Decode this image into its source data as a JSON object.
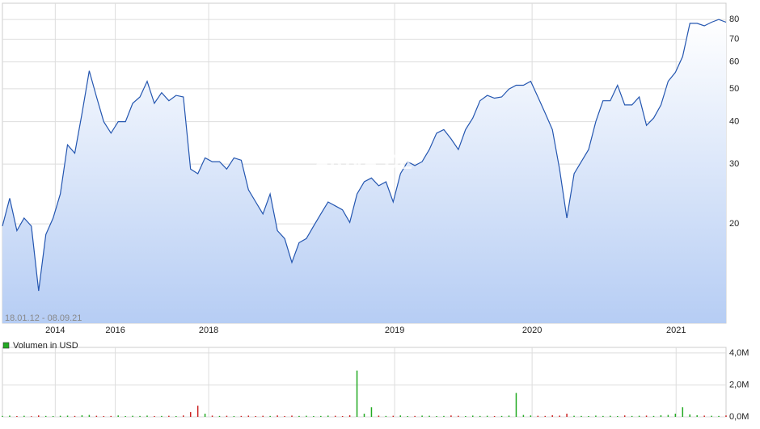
{
  "chart_data": [
    {
      "type": "line",
      "subtitle": "18.01.12 - 08.09.21",
      "watermark": "ARIVA.DE",
      "color": "#2456b0",
      "log_scale": true,
      "grid": true,
      "x": [
        0,
        1,
        2,
        3,
        4,
        5,
        6,
        7,
        8,
        9,
        10,
        11,
        12,
        13,
        14,
        15,
        16,
        17,
        18,
        19,
        20,
        21,
        22,
        23,
        24,
        25,
        26,
        27,
        28,
        29,
        30,
        31,
        32,
        33,
        34,
        35,
        36,
        37,
        38,
        39,
        40,
        41,
        42,
        43,
        44,
        45,
        46,
        47,
        48,
        49,
        50,
        51,
        52,
        53,
        54,
        55,
        56,
        57,
        58,
        59,
        60,
        61,
        62,
        63,
        64,
        65,
        66,
        67,
        68,
        69,
        70,
        71,
        72,
        73,
        74,
        75,
        76,
        77,
        78,
        79,
        80,
        81,
        82,
        83,
        84,
        85,
        86,
        87,
        88,
        89,
        90,
        91,
        92,
        93,
        94,
        95,
        96,
        97,
        98,
        99,
        100
      ],
      "values": [
        19.7,
        23.8,
        19.1,
        20.8,
        19.7,
        12.7,
        18.6,
        20.8,
        24.5,
        34.2,
        32.3,
        42.4,
        56.5,
        47.3,
        40.0,
        37.0,
        40.0,
        40.0,
        45.3,
        47.3,
        52.6,
        45.3,
        48.7,
        46.1,
        47.8,
        47.3,
        29.0,
        28.1,
        31.3,
        30.5,
        30.5,
        29.0,
        31.3,
        30.8,
        25.2,
        23.2,
        21.4,
        24.5,
        19.1,
        18.1,
        15.4,
        17.6,
        18.1,
        19.7,
        21.4,
        23.2,
        22.6,
        22.0,
        20.2,
        24.5,
        26.6,
        27.3,
        25.9,
        26.6,
        23.2,
        28.1,
        30.5,
        29.7,
        30.5,
        33.1,
        37.0,
        37.9,
        35.6,
        33.1,
        37.9,
        41.0,
        46.1,
        47.8,
        46.9,
        47.3,
        49.9,
        51.2,
        51.2,
        52.6,
        47.3,
        42.4,
        37.9,
        29.0,
        20.8,
        28.1,
        30.5,
        33.1,
        40.0,
        46.1,
        46.1,
        51.2,
        44.8,
        44.8,
        47.3,
        39.0,
        41.0,
        44.8,
        52.6,
        55.9,
        62.2,
        77.9,
        77.9,
        76.6,
        78.5,
        80.0,
        78.5
      ],
      "xlim": [
        0,
        100
      ],
      "xticks": [
        {
          "value": 7.3,
          "label": "2014"
        },
        {
          "value": 15.6,
          "label": "2016"
        },
        {
          "value": 28.5,
          "label": "2018"
        },
        {
          "value": 54.2,
          "label": "2019"
        },
        {
          "value": 73.2,
          "label": "2020"
        },
        {
          "value": 93.1,
          "label": "2021"
        }
      ],
      "ylim": [
        10.2,
        89.3
      ],
      "yticks": [
        20,
        30,
        40,
        50,
        60,
        70,
        80
      ]
    },
    {
      "type": "bar",
      "legend": "Volumen in USD",
      "up_color": "#22aa22",
      "down_color": "#cc2222",
      "values": [
        0.06,
        0.08,
        0.05,
        0.07,
        0.04,
        0.09,
        0.06,
        0.05,
        0.07,
        0.08,
        0.06,
        0.1,
        0.12,
        0.07,
        0.05,
        0.06,
        0.09,
        0.05,
        0.07,
        0.06,
        0.08,
        0.05,
        0.06,
        0.07,
        0.05,
        0.09,
        0.3,
        0.7,
        0.2,
        0.08,
        0.06,
        0.07,
        0.05,
        0.06,
        0.08,
        0.05,
        0.07,
        0.06,
        0.09,
        0.05,
        0.08,
        0.06,
        0.07,
        0.05,
        0.06,
        0.08,
        0.07,
        0.05,
        0.1,
        2.9,
        0.2,
        0.6,
        0.08,
        0.06,
        0.07,
        0.09,
        0.05,
        0.06,
        0.08,
        0.07,
        0.05,
        0.06,
        0.09,
        0.07,
        0.05,
        0.08,
        0.06,
        0.07,
        0.05,
        0.06,
        0.08,
        1.5,
        0.12,
        0.09,
        0.07,
        0.06,
        0.1,
        0.08,
        0.2,
        0.07,
        0.06,
        0.05,
        0.08,
        0.06,
        0.07,
        0.05,
        0.09,
        0.06,
        0.07,
        0.08,
        0.06,
        0.1,
        0.12,
        0.2,
        0.6,
        0.15,
        0.1,
        0.08,
        0.07,
        0.06,
        0.09
      ],
      "xlim": [
        0,
        100
      ],
      "ylim": [
        0,
        4.35
      ],
      "yticks": [
        {
          "value": 0,
          "label": "0,0M"
        },
        {
          "value": 2,
          "label": "2,0M"
        },
        {
          "value": 4,
          "label": "4,0M"
        }
      ]
    }
  ]
}
